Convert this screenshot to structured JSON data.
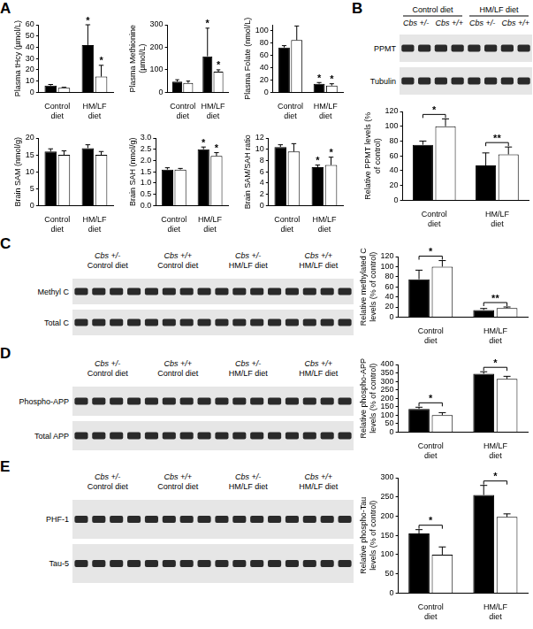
{
  "chart_data": [
    {
      "type": "bar",
      "panel": "A",
      "y_label": "Plasma tHcy (µmol/L)",
      "categories": [
        "Control diet",
        "HM/LF diet"
      ],
      "ylim": [
        0,
        60
      ],
      "yticks": [
        0,
        10,
        20,
        30,
        40,
        50,
        60
      ],
      "grid": false,
      "series": [
        {
          "color": "#000000",
          "values": [
            6,
            42
          ],
          "errors": [
            1,
            18
          ],
          "significance": [
            null,
            "*"
          ]
        },
        {
          "color": "#ffffff",
          "values": [
            4,
            14
          ],
          "errors": [
            0.5,
            10
          ],
          "significance": [
            null,
            "*"
          ]
        }
      ]
    },
    {
      "type": "bar",
      "y_label": "Plasma Methionine (µmol/L)",
      "categories": [
        "Control diet",
        "HM/LF diet"
      ],
      "ylim": [
        0,
        300
      ],
      "yticks": [
        0,
        100,
        200,
        300
      ],
      "grid": false,
      "series": [
        {
          "color": "#000000",
          "values": [
            48,
            160
          ],
          "errors": [
            8,
            125
          ],
          "significance": [
            null,
            "*"
          ]
        },
        {
          "color": "#ffffff",
          "values": [
            42,
            92
          ],
          "errors": [
            8,
            8
          ],
          "significance": [
            null,
            "*"
          ]
        }
      ]
    },
    {
      "type": "bar",
      "y_label": "Plasma Folate (nmol/L)",
      "categories": [
        "Control diet",
        "HM/LF diet"
      ],
      "ylim": [
        0,
        110
      ],
      "yticks": [
        0,
        20,
        40,
        60,
        80,
        100
      ],
      "grid": false,
      "series": [
        {
          "color": "#000000",
          "values": [
            73,
            14
          ],
          "errors": [
            3,
            2
          ],
          "significance": [
            null,
            "*"
          ]
        },
        {
          "color": "#ffffff",
          "values": [
            85,
            11
          ],
          "errors": [
            23,
            3
          ],
          "significance": [
            null,
            "*"
          ]
        }
      ]
    },
    {
      "type": "bar",
      "y_label": "Brain SAM (nmol/g)",
      "categories": [
        "Control diet",
        "HM/LF diet"
      ],
      "ylim": [
        0,
        20
      ],
      "yticks": [
        0,
        5,
        10,
        15,
        20
      ],
      "grid": false,
      "series": [
        {
          "color": "#000000",
          "values": [
            16,
            17
          ],
          "errors": [
            0.8,
            1
          ],
          "significance": [
            null,
            null
          ]
        },
        {
          "color": "#ffffff",
          "values": [
            15,
            15
          ],
          "errors": [
            1.2,
            1
          ],
          "significance": [
            null,
            null
          ]
        }
      ]
    },
    {
      "type": "bar",
      "y_label": "Brain SAH (nmol/g)",
      "categories": [
        "Control diet",
        "HM/LF diet"
      ],
      "ylim": [
        0,
        3
      ],
      "yticks": [
        {
          "value": 0,
          "label": "0.0"
        },
        0.5,
        {
          "value": 1,
          "label": "1.0"
        },
        1.5,
        {
          "value": 2,
          "label": "2.0"
        },
        2.5,
        {
          "value": 3,
          "label": "3.0"
        }
      ],
      "grid": false,
      "series": [
        {
          "color": "#000000",
          "values": [
            1.6,
            2.5
          ],
          "errors": [
            0.08,
            0.1
          ],
          "significance": [
            null,
            "*"
          ]
        },
        {
          "color": "#ffffff",
          "values": [
            1.6,
            2.2
          ],
          "errors": [
            0.05,
            0.15
          ],
          "significance": [
            null,
            "*"
          ]
        }
      ]
    },
    {
      "type": "bar",
      "y_label": "Brain SAM/SAH ratio",
      "categories": [
        "Control diet",
        "HM/LF diet"
      ],
      "ylim": [
        0,
        12
      ],
      "yticks": [
        0,
        2,
        4,
        6,
        8,
        10,
        12
      ],
      "grid": false,
      "series": [
        {
          "color": "#000000",
          "values": [
            10.4,
            6.8
          ],
          "errors": [
            0.4,
            0.4
          ],
          "significance": [
            null,
            "*"
          ]
        },
        {
          "color": "#ffffff",
          "values": [
            9.6,
            7.2
          ],
          "errors": [
            1.4,
            1.4
          ],
          "significance": [
            null,
            "*"
          ]
        }
      ]
    },
    {
      "type": "bar",
      "y_label": "Relative PPMT levels (% of control)",
      "categories": [
        "Control diet",
        "HM/LF diet"
      ],
      "ylim": [
        0,
        120
      ],
      "yticks": [
        0,
        20,
        40,
        60,
        80,
        100,
        120
      ],
      "grid": false,
      "brackets": [
        "*",
        "**"
      ],
      "series": [
        {
          "color": "#000000",
          "values": [
            75,
            47
          ],
          "errors": [
            5,
            17
          ]
        },
        {
          "color": "#ffffff",
          "values": [
            100,
            62
          ],
          "errors": [
            10,
            10
          ]
        }
      ]
    },
    {
      "type": "bar",
      "y_label": "Relative methylated C levels (% of control)",
      "categories": [
        "Control diet",
        "HM/LF diet"
      ],
      "ylim": [
        0,
        120
      ],
      "yticks": [
        0,
        20,
        40,
        60,
        80,
        100,
        120
      ],
      "grid": false,
      "brackets": [
        "*",
        "**"
      ],
      "series": [
        {
          "color": "#000000",
          "values": [
            75,
            14
          ],
          "errors": [
            18,
            3
          ]
        },
        {
          "color": "#ffffff",
          "values": [
            100,
            18
          ],
          "errors": [
            12,
            2
          ]
        }
      ]
    },
    {
      "type": "bar",
      "y_label": "Relative phospho-APP levels (% of control)",
      "categories": [
        "Control diet",
        "HM/LF diet"
      ],
      "ylim": [
        0,
        400
      ],
      "yticks": [
        0,
        50,
        100,
        150,
        200,
        250,
        300,
        350,
        400
      ],
      "grid": false,
      "brackets": [
        "*",
        "*"
      ],
      "series": [
        {
          "color": "#000000",
          "values": [
            137,
            345
          ],
          "errors": [
            10,
            12
          ]
        },
        {
          "color": "#ffffff",
          "values": [
            100,
            315
          ],
          "errors": [
            15,
            15
          ]
        }
      ]
    },
    {
      "type": "bar",
      "y_label": "Relative phospho-Tau levels (% of control)",
      "categories": [
        "Control diet",
        "HM/LF diet"
      ],
      "ylim": [
        0,
        300
      ],
      "yticks": [
        0,
        50,
        100,
        150,
        200,
        250,
        300
      ],
      "grid": false,
      "brackets": [
        "*",
        "*"
      ],
      "series": [
        {
          "color": "#000000",
          "values": [
            155,
            255
          ],
          "errors": [
            10,
            25
          ]
        },
        {
          "color": "#ffffff",
          "values": [
            100,
            198
          ],
          "errors": [
            20,
            8
          ]
        }
      ]
    }
  ],
  "blots": [
    {
      "panel": "B",
      "groups": [
        {
          "label": "Control diet",
          "lanes": [
            "Cbs +/-",
            "Cbs +/+"
          ]
        },
        {
          "label": "HM/LF diet",
          "lanes": [
            "Cbs +/-",
            "Cbs +/+"
          ]
        }
      ],
      "rows": [
        "PPMT",
        "Tubulin"
      ]
    },
    {
      "panel": "C",
      "columns": [
        [
          "Cbs +/-",
          "Control diet"
        ],
        [
          "Cbs +/+",
          "Control diet"
        ],
        [
          "Cbs +/-",
          "HM/LF diet"
        ],
        [
          "Cbs +/+",
          "HM/LF diet"
        ]
      ],
      "rows": [
        "Methyl C",
        "Total C"
      ]
    },
    {
      "panel": "D",
      "columns": [
        [
          "Cbs +/-",
          "Control diet"
        ],
        [
          "Cbs +/+",
          "Control diet"
        ],
        [
          "Cbs +/-",
          "HM/LF diet"
        ],
        [
          "Cbs +/+",
          "HM/LF diet"
        ]
      ],
      "rows": [
        "Phospho-APP",
        "Total APP"
      ]
    },
    {
      "panel": "E",
      "columns": [
        [
          "Cbs +/-",
          "Control diet"
        ],
        [
          "Cbs +/+",
          "Control diet"
        ],
        [
          "Cbs +/-",
          "HM/LF diet"
        ],
        [
          "Cbs +/+",
          "HM/LF diet"
        ]
      ],
      "rows": [
        "PHF-1",
        "Tau-5"
      ]
    }
  ]
}
